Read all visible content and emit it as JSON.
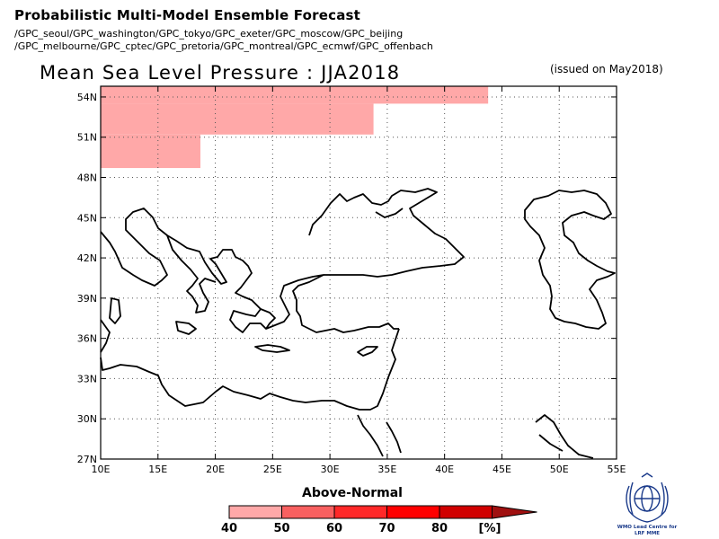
{
  "header": {
    "title": "Probabilistic Multi-Model Ensemble Forecast",
    "centres_line1": "/GPC_seoul/GPC_washington/GPC_tokyo/GPC_exeter/GPC_moscow/GPC_beijing",
    "centres_line2": "/GPC_melbourne/GPC_cptec/GPC_pretoria/GPC_montreal/GPC_ecmwf/GPC_offenbach"
  },
  "map": {
    "title": "Mean Sea Level Pressure : JJA2018",
    "issued": "(issued on May2018)",
    "lon_ticks": [
      "10E",
      "15E",
      "20E",
      "25E",
      "30E",
      "35E",
      "40E",
      "45E",
      "50E",
      "55E"
    ],
    "lat_ticks": [
      "27N",
      "30N",
      "33N",
      "36N",
      "39N",
      "42N",
      "45N",
      "48N",
      "51N",
      "54N"
    ],
    "lon_range": [
      10,
      55
    ],
    "lat_range": [
      27,
      54.8
    ],
    "shaded_regions": [
      {
        "category": "Above-Normal",
        "probability_bin": "40-50",
        "lon": [
          10,
          43.8
        ],
        "lat": [
          53.5,
          54.8
        ]
      },
      {
        "category": "Above-Normal",
        "probability_bin": "40-50",
        "lon": [
          10,
          33.8
        ],
        "lat": [
          51.2,
          53.5
        ]
      },
      {
        "category": "Above-Normal",
        "probability_bin": "40-50",
        "lon": [
          10,
          18.7
        ],
        "lat": [
          48.7,
          51.2
        ]
      }
    ],
    "shade_color": "#ffa8a8"
  },
  "legend": {
    "title": "Above-Normal",
    "labels": [
      "40",
      "50",
      "60",
      "70",
      "80"
    ],
    "unit": "[%]",
    "colors": [
      "#ffa8a8",
      "#f86060",
      "#ff2828",
      "#ff0000",
      "#d00000"
    ],
    "arrow_color": "#a01010"
  },
  "logo": {
    "text_line1": "WMO Lead Centre for",
    "text_line2": "LRF MME"
  }
}
